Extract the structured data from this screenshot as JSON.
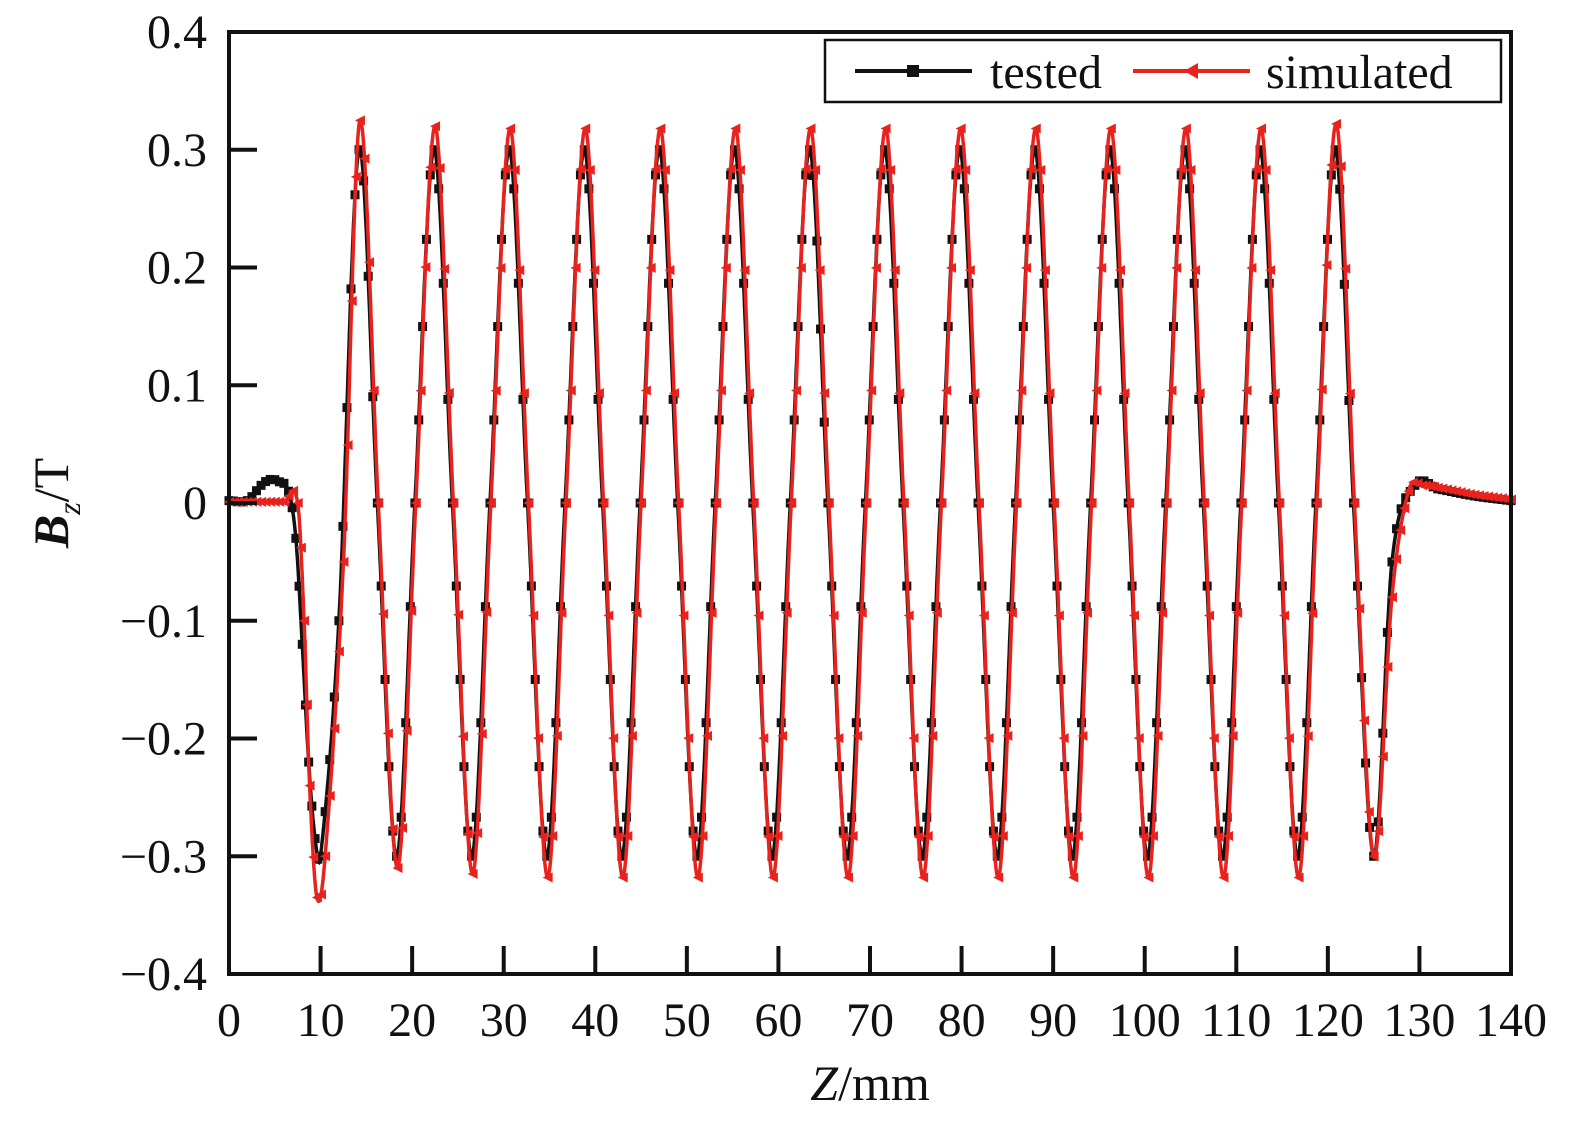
{
  "chart_data": {
    "type": "line",
    "xlabel": {
      "italic": "Z",
      "rest": "/mm"
    },
    "ylabel": {
      "italic": "B",
      "sub": "z",
      "rest": "/T"
    },
    "xlim": [
      0,
      140
    ],
    "ylim": [
      -0.4,
      0.4
    ],
    "xticks": [
      0,
      10,
      20,
      30,
      40,
      50,
      60,
      70,
      80,
      90,
      100,
      110,
      120,
      130,
      140
    ],
    "xtick_labels": [
      "0",
      "10",
      "20",
      "30",
      "40",
      "50",
      "60",
      "70",
      "80",
      "90",
      "100",
      "110",
      "120",
      "130",
      "140"
    ],
    "yticks": [
      0.4,
      0.3,
      0.2,
      0.1,
      0,
      -0.1,
      -0.2,
      -0.3,
      -0.4
    ],
    "ytick_labels": [
      "0.4",
      "0.3",
      "0.2",
      "0.1",
      "0",
      "−0.1",
      "−0.2",
      "−0.3",
      "−0.4"
    ],
    "grid": false,
    "legend_position": "top-right",
    "series": [
      {
        "name": "tested",
        "color": "#111111",
        "marker": "square",
        "x": [
          0,
          2,
          3.5,
          4.5,
          5.5,
          6.5,
          7.3,
          8,
          8.7,
          9.4,
          10,
          12,
          14.2,
          16.2,
          18.3,
          20.3,
          22.4,
          24.4,
          26.5,
          28.5,
          30.6,
          32.6,
          34.7,
          36.7,
          38.8,
          40.8,
          42.9,
          44.9,
          47,
          49,
          51.1,
          53.1,
          55.2,
          57.2,
          59.3,
          61.3,
          63.4,
          65.4,
          67.5,
          69.5,
          71.6,
          73.6,
          75.7,
          77.7,
          79.8,
          81.8,
          83.9,
          85.9,
          88,
          90,
          92.1,
          94.1,
          96.2,
          98.2,
          100.3,
          102.3,
          104.4,
          106.4,
          108.5,
          110.5,
          112.6,
          114.6,
          116.7,
          118.7,
          120.8,
          122.8,
          125.0,
          127,
          129.5,
          132,
          136,
          140
        ],
        "y": [
          0.002,
          0.002,
          0.015,
          0.02,
          0.018,
          0.01,
          -0.03,
          -0.12,
          -0.22,
          -0.285,
          -0.3,
          -0.1,
          0.3,
          0,
          -0.3,
          0,
          0.3,
          0,
          -0.3,
          0,
          0.3,
          0,
          -0.3,
          0,
          0.3,
          0,
          -0.3,
          0,
          0.3,
          0,
          -0.3,
          0,
          0.3,
          0,
          -0.3,
          0,
          0.3,
          0,
          -0.3,
          0,
          0.3,
          0,
          -0.3,
          0,
          0.3,
          0,
          -0.3,
          0,
          0.3,
          0,
          -0.3,
          0,
          0.3,
          0,
          -0.3,
          0,
          0.3,
          0,
          -0.3,
          0,
          0.3,
          0,
          -0.3,
          0,
          0.3,
          0,
          -0.3,
          -0.05,
          0.015,
          0.012,
          0.006,
          0.002
        ]
      },
      {
        "name": "simulated",
        "color": "#e8231e",
        "marker": "left-triangle",
        "x": [
          0,
          2,
          4,
          6,
          7.5,
          8.2,
          8.8,
          9.6,
          10.5,
          12.5,
          14.3,
          16.3,
          18.4,
          20.4,
          22.5,
          24.5,
          26.6,
          28.6,
          30.7,
          32.7,
          34.8,
          36.8,
          38.9,
          40.9,
          43.0,
          45.0,
          47.1,
          49.1,
          51.2,
          53.2,
          55.3,
          57.3,
          59.4,
          61.4,
          63.5,
          65.5,
          67.6,
          69.6,
          71.7,
          73.7,
          75.8,
          77.8,
          79.9,
          81.9,
          84.0,
          86.0,
          88.1,
          90.1,
          92.2,
          94.2,
          96.3,
          98.3,
          100.4,
          102.4,
          104.5,
          106.5,
          108.6,
          110.6,
          112.7,
          114.7,
          116.8,
          118.8,
          120.9,
          122.9,
          125.0,
          127.0,
          128.8,
          130.3,
          132,
          134,
          136,
          138,
          140
        ],
        "y": [
          0.001,
          0.001,
          0.001,
          0.001,
          0,
          -0.1,
          -0.24,
          -0.335,
          -0.3,
          -0.05,
          0.325,
          0,
          -0.31,
          0,
          0.32,
          0,
          -0.315,
          0,
          0.318,
          0,
          -0.318,
          0,
          0.318,
          0,
          -0.318,
          0,
          0.318,
          0,
          -0.318,
          0,
          0.318,
          0,
          -0.318,
          0,
          0.318,
          0,
          -0.318,
          0,
          0.318,
          0,
          -0.318,
          0,
          0.318,
          0,
          -0.318,
          0,
          0.318,
          0,
          -0.318,
          0,
          0.318,
          0,
          -0.318,
          0,
          0.318,
          0,
          -0.318,
          0,
          0.318,
          0,
          -0.318,
          0,
          0.322,
          0,
          -0.3,
          -0.08,
          0.01,
          0.015,
          0.013,
          0.01,
          0.007,
          0.005,
          0.003
        ]
      }
    ]
  }
}
